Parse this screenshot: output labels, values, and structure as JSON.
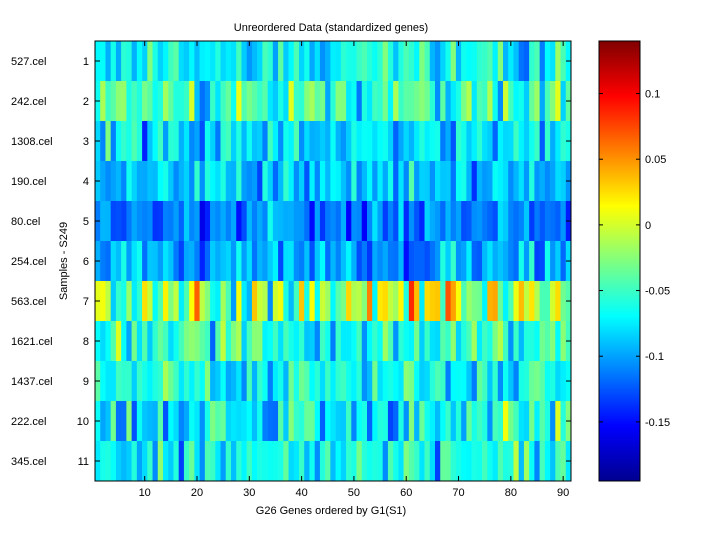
{
  "chart_data": {
    "type": "heatmap",
    "title": "Unreordered Data (standardized genes)",
    "xlabel": "G26 Genes ordered by G1(S1)",
    "ylabel": "Samples - S249",
    "xlim": [
      0.5,
      91.5
    ],
    "n_columns": 91,
    "x_ticks": [
      10,
      20,
      30,
      40,
      50,
      60,
      70,
      80,
      90
    ],
    "rows": [
      {
        "index": 1,
        "sample": "527.cel"
      },
      {
        "index": 2,
        "sample": "242.cel"
      },
      {
        "index": 3,
        "sample": "1308.cel"
      },
      {
        "index": 4,
        "sample": "190.cel"
      },
      {
        "index": 5,
        "sample": "80.cel"
      },
      {
        "index": 6,
        "sample": "254.cel"
      },
      {
        "index": 7,
        "sample": "563.cel"
      },
      {
        "index": 8,
        "sample": "1621.cel"
      },
      {
        "index": 9,
        "sample": "1437.cel"
      },
      {
        "index": 10,
        "sample": "222.cel"
      },
      {
        "index": 11,
        "sample": "345.cel"
      }
    ],
    "colormap": "jet",
    "color_range": [
      -0.195,
      0.14
    ],
    "colorbar_ticks": [
      {
        "value": 0.1,
        "label": "0.1"
      },
      {
        "value": 0.05,
        "label": "0.05"
      },
      {
        "value": 0,
        "label": "0"
      },
      {
        "value": -0.05,
        "label": "-0.05"
      },
      {
        "value": -0.1,
        "label": "-0.1"
      },
      {
        "value": -0.15,
        "label": "-0.15"
      }
    ],
    "row_profiles": [
      {
        "mean": -0.068,
        "spread": 0.032
      },
      {
        "mean": -0.05,
        "spread": 0.04
      },
      {
        "mean": -0.08,
        "spread": 0.032
      },
      {
        "mean": -0.085,
        "spread": 0.03
      },
      {
        "mean": -0.115,
        "spread": 0.028
      },
      {
        "mean": -0.1,
        "spread": 0.03
      },
      {
        "mean": -0.02,
        "spread": 0.055
      },
      {
        "mean": -0.055,
        "spread": 0.04
      },
      {
        "mean": -0.065,
        "spread": 0.033
      },
      {
        "mean": -0.07,
        "spread": 0.04
      },
      {
        "mean": -0.07,
        "spread": 0.035
      }
    ],
    "random_seed": 26249
  }
}
